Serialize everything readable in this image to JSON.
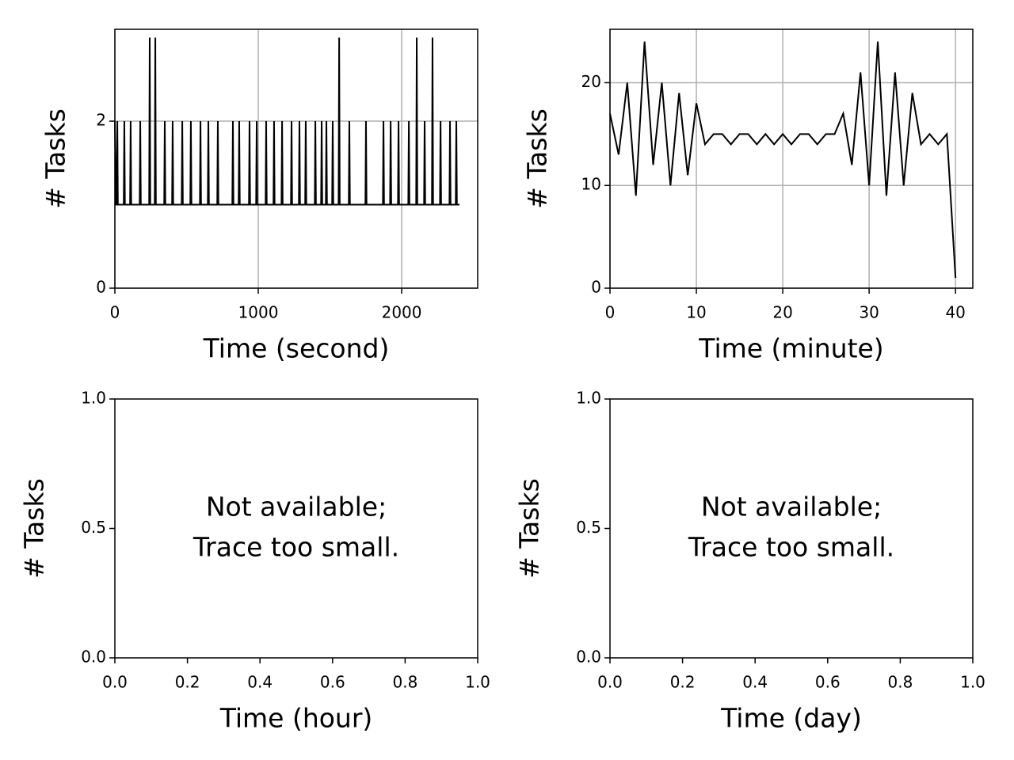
{
  "chart_data": [
    {
      "type": "line",
      "xlabel": "Time (second)",
      "ylabel": "# Tasks",
      "color": "#000000",
      "grid": true,
      "xlim": [
        0,
        2530
      ],
      "ylim": [
        0,
        3.1
      ],
      "xticks": [
        0,
        1000,
        2000
      ],
      "yticks": [
        0,
        2
      ],
      "x": [
        0,
        8,
        13,
        17,
        21,
        62,
        66,
        70,
        106,
        110,
        114,
        173,
        177,
        181,
        239,
        243,
        247,
        278,
        282,
        286,
        344,
        348,
        352,
        399,
        403,
        407,
        466,
        470,
        474,
        526,
        530,
        534,
        593,
        597,
        601,
        648,
        652,
        656,
        714,
        718,
        722,
        819,
        823,
        827,
        863,
        867,
        871,
        935,
        939,
        943,
        985,
        989,
        993,
        1051,
        1055,
        1059,
        1106,
        1110,
        1114,
        1162,
        1166,
        1170,
        1228,
        1232,
        1236,
        1283,
        1287,
        1291,
        1327,
        1331,
        1335,
        1394,
        1398,
        1402,
        1438,
        1442,
        1446,
        1471,
        1475,
        1479,
        1515,
        1519,
        1523,
        1560,
        1564,
        1568,
        1631,
        1635,
        1639,
        1747,
        1751,
        1755,
        1869,
        1873,
        1877,
        1919,
        1923,
        1927,
        1974,
        1978,
        1982,
        2046,
        2050,
        2054,
        2101,
        2105,
        2109,
        2156,
        2160,
        2164,
        2211,
        2215,
        2219,
        2267,
        2271,
        2275,
        2333,
        2337,
        2341,
        2377,
        2381,
        2385,
        2403
      ],
      "values": [
        2,
        1,
        1,
        2,
        1,
        1,
        2,
        1,
        1,
        2,
        1,
        1,
        2,
        1,
        1,
        3,
        1,
        1,
        3,
        1,
        1,
        2,
        1,
        1,
        2,
        1,
        1,
        2,
        1,
        1,
        2,
        1,
        1,
        2,
        1,
        1,
        2,
        1,
        1,
        2,
        1,
        1,
        2,
        1,
        1,
        2,
        1,
        1,
        2,
        1,
        1,
        2,
        1,
        1,
        2,
        1,
        1,
        2,
        1,
        1,
        2,
        1,
        1,
        2,
        1,
        1,
        2,
        1,
        1,
        2,
        1,
        1,
        2,
        1,
        1,
        2,
        1,
        1,
        2,
        1,
        1,
        2,
        1,
        1,
        3,
        1,
        1,
        2,
        1,
        1,
        2,
        1,
        1,
        2,
        1,
        1,
        2,
        1,
        1,
        2,
        1,
        1,
        2,
        1,
        1,
        3,
        1,
        1,
        2,
        1,
        1,
        3,
        1,
        1,
        2,
        1,
        1,
        2,
        1,
        1,
        2,
        1,
        1
      ]
    },
    {
      "type": "line",
      "xlabel": "Time (minute)",
      "ylabel": "# Tasks",
      "color": "#000000",
      "grid": true,
      "xlim": [
        0,
        42
      ],
      "ylim": [
        0,
        25.2
      ],
      "xticks": [
        0,
        10,
        20,
        30,
        40
      ],
      "yticks": [
        0,
        10,
        20
      ],
      "x": [
        0,
        1,
        2,
        3,
        4,
        5,
        6,
        7,
        8,
        9,
        10,
        11,
        12,
        13,
        14,
        15,
        16,
        17,
        18,
        19,
        20,
        21,
        22,
        23,
        24,
        25,
        26,
        27,
        28,
        29,
        30,
        31,
        32,
        33,
        34,
        35,
        36,
        37,
        38,
        39,
        40
      ],
      "values": [
        17,
        13,
        20,
        9,
        24,
        12,
        20,
        10,
        19,
        11,
        18,
        14,
        15,
        15,
        14,
        15,
        15,
        14,
        15,
        14,
        15,
        14,
        15,
        15,
        14,
        15,
        15,
        17,
        12,
        21,
        10,
        24,
        9,
        21,
        10,
        19,
        14,
        15,
        14,
        15,
        1
      ]
    },
    {
      "type": "line",
      "xlabel": "Time (hour)",
      "ylabel": "# Tasks",
      "grid": false,
      "annotation": [
        "Not available;",
        "Trace too small."
      ],
      "xlim": [
        0,
        1
      ],
      "ylim": [
        0,
        1
      ],
      "xticks": [
        {
          "value": 0,
          "label": "0.0"
        },
        {
          "value": 0.2,
          "label": "0.2"
        },
        {
          "value": 0.4,
          "label": "0.4"
        },
        {
          "value": 0.6,
          "label": "0.6"
        },
        {
          "value": 0.8,
          "label": "0.8"
        },
        {
          "value": 1,
          "label": "1.0"
        }
      ],
      "yticks": [
        {
          "value": 0,
          "label": "0.0"
        },
        {
          "value": 0.5,
          "label": "0.5"
        },
        {
          "value": 1,
          "label": "1.0"
        }
      ]
    },
    {
      "type": "line",
      "xlabel": "Time (day)",
      "ylabel": "# Tasks",
      "grid": false,
      "annotation": [
        "Not available;",
        "Trace too small."
      ],
      "xlim": [
        0,
        1
      ],
      "ylim": [
        0,
        1
      ],
      "xticks": [
        {
          "value": 0,
          "label": "0.0"
        },
        {
          "value": 0.2,
          "label": "0.2"
        },
        {
          "value": 0.4,
          "label": "0.4"
        },
        {
          "value": 0.6,
          "label": "0.6"
        },
        {
          "value": 0.8,
          "label": "0.8"
        },
        {
          "value": 1,
          "label": "1.0"
        }
      ],
      "yticks": [
        {
          "value": 0,
          "label": "0.0"
        },
        {
          "value": 0.5,
          "label": "0.5"
        },
        {
          "value": 1,
          "label": "1.0"
        }
      ]
    }
  ]
}
